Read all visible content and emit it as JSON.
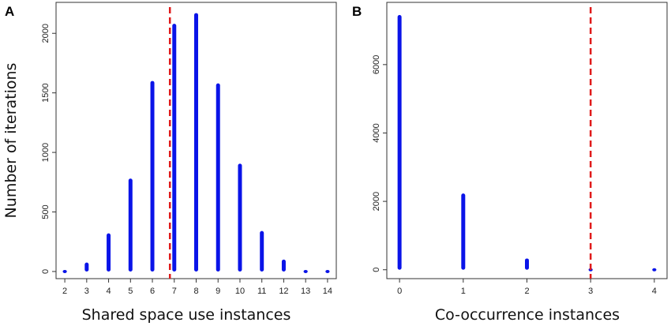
{
  "chart_data": [
    {
      "panel": "A",
      "type": "bar",
      "xlabel": "Shared space use instances",
      "ylabel": "Number of iterations",
      "x": [
        2,
        3,
        4,
        5,
        6,
        7,
        8,
        9,
        10,
        11,
        12,
        13,
        14
      ],
      "values": [
        5,
        75,
        320,
        780,
        1600,
        2080,
        2170,
        1580,
        905,
        340,
        100,
        25,
        5
      ],
      "xlim": [
        1.6,
        14.4
      ],
      "ylim": [
        -60,
        2260
      ],
      "xticks": [
        "2",
        "3",
        "4",
        "5",
        "6",
        "7",
        "8",
        "9",
        "10",
        "11",
        "12",
        "13",
        "14"
      ],
      "yticks": [
        "0",
        "500",
        "1000",
        "1500",
        "2000"
      ],
      "reference_line": 6.8,
      "grid": false,
      "legend": "none"
    },
    {
      "panel": "B",
      "type": "bar",
      "xlabel": "Co-occurrence instances",
      "ylabel": "",
      "x": [
        0,
        1,
        2,
        3,
        4
      ],
      "values": [
        7450,
        2230,
        330,
        20,
        5
      ],
      "xlim": [
        -0.2,
        4.2
      ],
      "ylim": [
        -260,
        7820
      ],
      "xticks": [
        "0",
        "1",
        "2",
        "3",
        "4"
      ],
      "yticks": [
        "0",
        "2000",
        "4000",
        "6000"
      ],
      "reference_line": 3,
      "grid": false,
      "legend": "none"
    }
  ],
  "colors": {
    "bars": "#0a14e8",
    "reference_line": "#e01b1b",
    "frame": "#333333"
  },
  "panels": {
    "a_letter": "A",
    "b_letter": "B"
  }
}
